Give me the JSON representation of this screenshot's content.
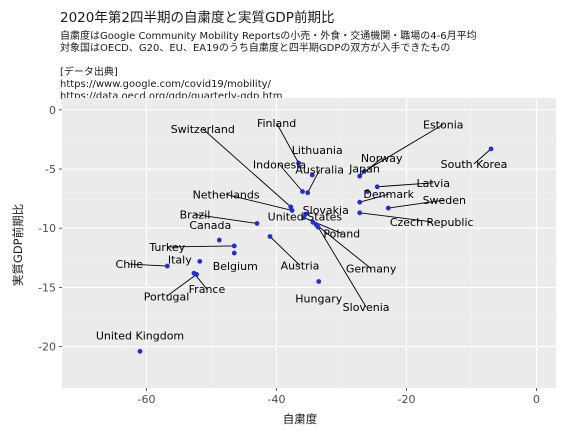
{
  "header": {
    "title": "2020年第2四半期の自粛度と実質GDP前期比",
    "subtitle_lines": [
      "自粛度はGoogle Community Mobility Reportsの小売・外食・交通機関・職場の4-6月平均",
      "対象国はOECD、G20、EU、EA19のうち自粛度と四半期GDPの双方が入手できたもの",
      "",
      "[データ出典]",
      "https://www.google.com/covid19/mobility/",
      "https://data.oecd.org/gdp/quarterly-gdp.htm"
    ]
  },
  "chart_data": {
    "type": "scatter",
    "xlabel": "自粛度",
    "ylabel": "実質GDP前期比",
    "xlim": [
      -73,
      3
    ],
    "ylim": [
      -23.5,
      1
    ],
    "xticks": [
      -60,
      -40,
      -20,
      0
    ],
    "yticks": [
      0,
      -5,
      -10,
      -15,
      -20
    ],
    "grid": true,
    "point_color": "#1f2fd6",
    "points": [
      {
        "name": "Finland",
        "x": -36.6,
        "y": -4.5
      },
      {
        "name": "Lithuania",
        "x": -34.5,
        "y": -5.5
      },
      {
        "name": "Estonia",
        "x": -26.5,
        "y": -5.2
      },
      {
        "name": "Norway",
        "x": -27.2,
        "y": -5.6
      },
      {
        "name": "South Korea",
        "x": -7.0,
        "y": -3.3
      },
      {
        "name": "Switzerland",
        "x": -37.8,
        "y": -8.2
      },
      {
        "name": "Indonesia",
        "x": -36.0,
        "y": -6.9
      },
      {
        "name": "Australia",
        "x": -35.2,
        "y": -7.0
      },
      {
        "name": "Latvia",
        "x": -24.5,
        "y": -6.5
      },
      {
        "name": "Japan",
        "x": -26.0,
        "y": -6.9
      },
      {
        "name": "Denmark",
        "x": -27.2,
        "y": -7.8
      },
      {
        "name": "Sweden",
        "x": -22.8,
        "y": -8.3
      },
      {
        "name": "Netherlands",
        "x": -37.6,
        "y": -8.5
      },
      {
        "name": "Slovakia",
        "x": -35.5,
        "y": -8.8
      },
      {
        "name": "Czech Republic",
        "x": -27.2,
        "y": -8.7
      },
      {
        "name": "Poland",
        "x": -35.8,
        "y": -9.1
      },
      {
        "name": "United States",
        "x": -34.4,
        "y": -9.5
      },
      {
        "name": "Germany",
        "x": -33.9,
        "y": -9.7
      },
      {
        "name": "Slovenia",
        "x": -33.6,
        "y": -9.9
      },
      {
        "name": "Brazil",
        "x": -43.0,
        "y": -9.6
      },
      {
        "name": "Canada",
        "x": -48.8,
        "y": -11.0
      },
      {
        "name": "Austria",
        "x": -41.0,
        "y": -10.7
      },
      {
        "name": "Belgium",
        "x": -46.5,
        "y": -12.1
      },
      {
        "name": "Turkey",
        "x": -46.5,
        "y": -11.5
      },
      {
        "name": "Italy",
        "x": -51.8,
        "y": -12.8
      },
      {
        "name": "Chile",
        "x": -56.8,
        "y": -13.2
      },
      {
        "name": "Portugal",
        "x": -52.3,
        "y": -13.9
      },
      {
        "name": "France",
        "x": -52.7,
        "y": -13.8
      },
      {
        "name": "Hungary",
        "x": -33.5,
        "y": -14.5
      },
      {
        "name": "United Kingdom",
        "x": -61.0,
        "y": -20.4
      }
    ]
  }
}
